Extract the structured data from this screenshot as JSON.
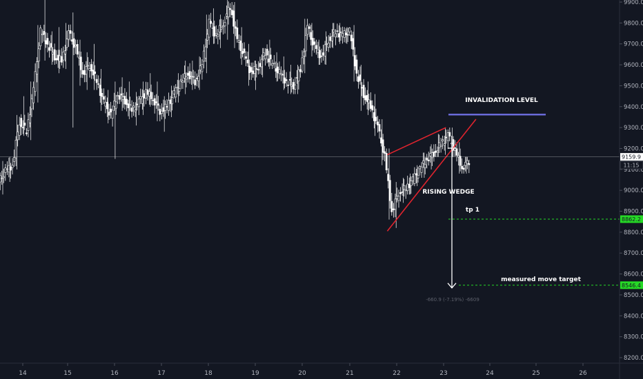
{
  "chart_data": {
    "type": "candlestick",
    "price_axis": [
      "9900.0",
      "9800.0",
      "9700.0",
      "9600.0",
      "9500.0",
      "9400.0",
      "9300.0",
      "9200.0",
      "9100.0",
      "9000.0",
      "8900.0",
      "8800.0",
      "8700.0",
      "8600.0",
      "8500.0",
      "8400.0",
      "8300.0",
      "8200.0"
    ],
    "price_ticks": [
      9900,
      9800,
      9700,
      9600,
      9500,
      9400,
      9300,
      9200,
      9100,
      9000,
      8900,
      8800,
      8700,
      8600,
      8500,
      8400,
      8300,
      8200
    ],
    "date_axis": [
      "14",
      "15",
      "16",
      "17",
      "18",
      "19",
      "20",
      "21",
      "22",
      "23",
      "24",
      "25",
      "26"
    ],
    "ylim": [
      8180,
      9910
    ],
    "current_price": "9159.9",
    "countdown": "11:15",
    "tp1_price": "8862.2",
    "target_price": "8546.4",
    "invalidation_price": 9362,
    "candles": [
      [
        9040,
        9140,
        8980,
        9090
      ],
      [
        9090,
        9160,
        9040,
        9120
      ],
      [
        9120,
        9360,
        9100,
        9330
      ],
      [
        9330,
        9450,
        9260,
        9280
      ],
      [
        9280,
        9520,
        9240,
        9480
      ],
      [
        9480,
        9790,
        9420,
        9760
      ],
      [
        9760,
        9910,
        9620,
        9700
      ],
      [
        9700,
        9760,
        9600,
        9640
      ],
      [
        9640,
        9780,
        9560,
        9620
      ],
      [
        9620,
        9800,
        9580,
        9750
      ],
      [
        9750,
        9850,
        9300,
        9680
      ],
      [
        9680,
        9720,
        9500,
        9560
      ],
      [
        9560,
        9660,
        9480,
        9600
      ],
      [
        9600,
        9700,
        9480,
        9520
      ],
      [
        9520,
        9580,
        9380,
        9420
      ],
      [
        9420,
        9480,
        9320,
        9360
      ],
      [
        9360,
        9520,
        9150,
        9460
      ],
      [
        9460,
        9540,
        9380,
        9430
      ],
      [
        9430,
        9520,
        9340,
        9380
      ],
      [
        9380,
        9470,
        9310,
        9420
      ],
      [
        9420,
        9520,
        9360,
        9470
      ],
      [
        9470,
        9560,
        9400,
        9440
      ],
      [
        9440,
        9520,
        9330,
        9380
      ],
      [
        9380,
        9450,
        9280,
        9400
      ],
      [
        9400,
        9500,
        9350,
        9460
      ],
      [
        9460,
        9560,
        9420,
        9520
      ],
      [
        9520,
        9620,
        9460,
        9560
      ],
      [
        9560,
        9620,
        9480,
        9520
      ],
      [
        9520,
        9640,
        9480,
        9600
      ],
      [
        9600,
        9840,
        9560,
        9800
      ],
      [
        9800,
        9870,
        9700,
        9740
      ],
      [
        9740,
        9840,
        9680,
        9800
      ],
      [
        9800,
        9910,
        9720,
        9880
      ],
      [
        9880,
        9900,
        9680,
        9720
      ],
      [
        9720,
        9780,
        9600,
        9640
      ],
      [
        9640,
        9700,
        9500,
        9560
      ],
      [
        9560,
        9620,
        9480,
        9590
      ],
      [
        9590,
        9680,
        9540,
        9660
      ],
      [
        9660,
        9720,
        9580,
        9600
      ],
      [
        9600,
        9660,
        9520,
        9560
      ],
      [
        9560,
        9640,
        9480,
        9520
      ],
      [
        9520,
        9600,
        9460,
        9500
      ],
      [
        9500,
        9600,
        9460,
        9580
      ],
      [
        9580,
        9820,
        9560,
        9780
      ],
      [
        9780,
        9800,
        9640,
        9680
      ],
      [
        9680,
        9720,
        9600,
        9640
      ],
      [
        9640,
        9760,
        9600,
        9720
      ],
      [
        9720,
        9800,
        9680,
        9760
      ],
      [
        9760,
        9800,
        9700,
        9740
      ],
      [
        9740,
        9780,
        9700,
        9760
      ],
      [
        9760,
        9790,
        9520,
        9560
      ],
      [
        9560,
        9600,
        9380,
        9460
      ],
      [
        9460,
        9520,
        9360,
        9400
      ],
      [
        9400,
        9460,
        9260,
        9300
      ],
      [
        9300,
        9340,
        9120,
        9160
      ],
      [
        9160,
        9200,
        8860,
        8900
      ],
      [
        8900,
        9040,
        8820,
        8990
      ],
      [
        8990,
        9060,
        8940,
        9010
      ],
      [
        9010,
        9080,
        8980,
        9050
      ],
      [
        9050,
        9120,
        9020,
        9100
      ],
      [
        9100,
        9180,
        9060,
        9150
      ],
      [
        9150,
        9220,
        9100,
        9180
      ],
      [
        9180,
        9270,
        9160,
        9220
      ],
      [
        9220,
        9300,
        9170,
        9260
      ],
      [
        9260,
        9300,
        9160,
        9190
      ],
      [
        9190,
        9230,
        9080,
        9110
      ],
      [
        9110,
        9160,
        9080,
        9140
      ]
    ],
    "trendlines": [
      {
        "p1": [
          21.8,
          9170
        ],
        "p2": [
          23.05,
          9300
        ],
        "color": "#e0242e"
      },
      {
        "p1": [
          21.8,
          8805
        ],
        "p2": [
          23.7,
          9340
        ],
        "color": "#e0242e"
      }
    ]
  },
  "annotations": {
    "invalidation": "INVALIDATION LEVEL",
    "wedge": "RISING WEDGE",
    "tp1": "tp 1",
    "target": "measured move target",
    "measure": "-660.9 (-7.19%) -6609"
  },
  "colors": {
    "background": "#131722",
    "candle": "#ffffff",
    "trendline": "#e0242e",
    "invalidation": "#6a6ad8",
    "tp_line": "#26d926",
    "price_tag_current": "#ffffff",
    "price_tag_target": "#26d926"
  }
}
